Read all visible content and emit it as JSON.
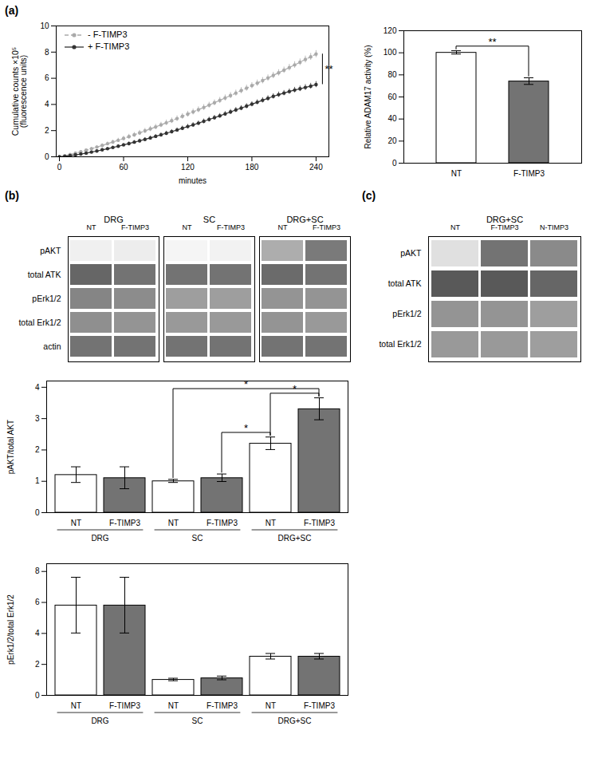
{
  "chart_data": [
    {
      "type": "line",
      "title": "(a)",
      "x_label": "minutes",
      "y_label": "Cumulative counts ×10⁵\n(fluorescence units)",
      "x": [
        0,
        5,
        10,
        15,
        20,
        25,
        30,
        35,
        40,
        45,
        50,
        55,
        60,
        65,
        70,
        75,
        80,
        85,
        90,
        95,
        100,
        105,
        110,
        115,
        120,
        125,
        130,
        135,
        140,
        145,
        150,
        155,
        160,
        165,
        170,
        175,
        180,
        185,
        190,
        195,
        200,
        205,
        210,
        215,
        220,
        225,
        230,
        235,
        240
      ],
      "xlim": [
        -3,
        252
      ],
      "xticks": [
        0,
        60,
        120,
        180,
        240
      ],
      "ylim": [
        0,
        10
      ],
      "yticks": [
        0,
        2,
        4,
        6,
        8,
        10
      ],
      "legend": "upper left",
      "series": [
        {
          "name": "- F-TIMP3",
          "color": "#aaaaaa",
          "line_style": "dashed",
          "marker": "circle",
          "values": [
            0,
            0.08,
            0.17,
            0.27,
            0.38,
            0.5,
            0.62,
            0.74,
            0.87,
            1.0,
            1.13,
            1.26,
            1.4,
            1.54,
            1.68,
            1.83,
            1.98,
            2.13,
            2.28,
            2.44,
            2.6,
            2.76,
            2.92,
            3.09,
            3.26,
            3.43,
            3.6,
            3.77,
            3.95,
            4.13,
            4.31,
            4.5,
            4.68,
            4.87,
            5.06,
            5.25,
            5.44,
            5.63,
            5.82,
            6.02,
            6.22,
            6.42,
            6.62,
            6.82,
            7.02,
            7.23,
            7.44,
            7.64,
            7.85
          ],
          "errors": [
            0.03,
            0.04,
            0.05,
            0.07,
            0.08,
            0.1,
            0.11,
            0.12,
            0.13,
            0.14,
            0.15,
            0.16,
            0.17,
            0.18,
            0.18,
            0.19,
            0.19,
            0.2,
            0.2,
            0.2,
            0.21,
            0.21,
            0.21,
            0.21,
            0.22,
            0.22,
            0.22,
            0.22,
            0.22,
            0.22,
            0.23,
            0.23,
            0.23,
            0.23,
            0.23,
            0.23,
            0.23,
            0.24,
            0.24,
            0.24,
            0.24,
            0.24,
            0.24,
            0.25,
            0.25,
            0.25,
            0.26,
            0.26,
            0.27
          ]
        },
        {
          "name": "+ F-TIMP3",
          "color": "#333333",
          "line_style": "solid",
          "marker": "circle",
          "values": [
            0,
            0.04,
            0.09,
            0.15,
            0.21,
            0.28,
            0.36,
            0.44,
            0.53,
            0.62,
            0.71,
            0.81,
            0.91,
            1.01,
            1.12,
            1.22,
            1.33,
            1.44,
            1.56,
            1.68,
            1.8,
            1.92,
            2.05,
            2.18,
            2.31,
            2.44,
            2.57,
            2.71,
            2.85,
            2.99,
            3.13,
            3.28,
            3.43,
            3.58,
            3.72,
            3.87,
            4.02,
            4.17,
            4.32,
            4.47,
            4.62,
            4.75,
            4.87,
            4.99,
            5.1,
            5.2,
            5.3,
            5.4,
            5.52
          ],
          "errors": [
            0.02,
            0.03,
            0.04,
            0.05,
            0.06,
            0.07,
            0.08,
            0.09,
            0.1,
            0.11,
            0.11,
            0.12,
            0.12,
            0.13,
            0.13,
            0.14,
            0.14,
            0.15,
            0.15,
            0.15,
            0.16,
            0.16,
            0.16,
            0.17,
            0.17,
            0.17,
            0.17,
            0.18,
            0.18,
            0.18,
            0.18,
            0.18,
            0.19,
            0.19,
            0.19,
            0.19,
            0.19,
            0.19,
            0.2,
            0.2,
            0.2,
            0.2,
            0.2,
            0.2,
            0.21,
            0.21,
            0.22,
            0.22,
            0.23
          ]
        }
      ],
      "annotations": [
        {
          "text": "**",
          "from": "- F-TIMP3",
          "to": "+ F-TIMP3"
        }
      ]
    },
    {
      "type": "bar",
      "categories": [
        "NT",
        "F-TIMP3"
      ],
      "values": [
        100,
        74
      ],
      "errors": [
        1.5,
        3.0
      ],
      "colors": [
        "white",
        "#737373"
      ],
      "ylim": [
        0,
        120
      ],
      "yticks": [
        0,
        20,
        40,
        60,
        80,
        100,
        120
      ],
      "y_label": "Relative ADAM17 activity (%)",
      "annotations": [
        {
          "text": "**",
          "from": "NT",
          "to": "F-TIMP3"
        }
      ]
    },
    {
      "type": "heatmap",
      "title": "(b)",
      "groups": [
        "DRG",
        "SC",
        "DRG+SC"
      ],
      "lane_labels": [
        [
          "NT",
          "F-TIMP3"
        ],
        [
          "NT",
          "F-TIMP3"
        ],
        [
          "NT",
          "F-TIMP3"
        ]
      ],
      "row_labels": [
        "pAKT",
        "total ATK",
        "pErk1/2",
        "total Erk1/2",
        "actin"
      ],
      "values": [
        [
          0.06,
          0.07,
          0.04,
          0.05,
          0.32,
          0.52
        ],
        [
          0.6,
          0.55,
          0.55,
          0.55,
          0.58,
          0.55
        ],
        [
          0.48,
          0.45,
          0.38,
          0.38,
          0.42,
          0.42
        ],
        [
          0.44,
          0.42,
          0.4,
          0.4,
          0.42,
          0.4
        ],
        [
          0.55,
          0.55,
          0.55,
          0.55,
          0.55,
          0.55
        ]
      ],
      "zlim": [
        0,
        1
      ]
    },
    {
      "type": "heatmap",
      "title": "(c)",
      "groups": [
        "DRG+SC"
      ],
      "lane_labels": [
        [
          "NT",
          "F-TIMP3",
          "N-TIMP3"
        ]
      ],
      "row_labels": [
        "pAKT",
        "total ATK",
        "pErk1/2",
        "total Erk1/2"
      ],
      "values": [
        [
          0.12,
          0.55,
          0.46
        ],
        [
          0.65,
          0.65,
          0.6
        ],
        [
          0.42,
          0.42,
          0.38
        ],
        [
          0.4,
          0.4,
          0.38
        ]
      ],
      "zlim": [
        0,
        1
      ]
    },
    {
      "type": "bar",
      "categories": [
        "DRG",
        "SC",
        "DRG+SC"
      ],
      "series": [
        {
          "name": "NT",
          "color": "white",
          "values": [
            1.2,
            1.0,
            2.2
          ],
          "errors": [
            0.25,
            0.05,
            0.2
          ]
        },
        {
          "name": "F-TIMP3",
          "color": "#737373",
          "values": [
            1.1,
            1.1,
            3.3
          ],
          "errors": [
            0.35,
            0.12,
            0.35
          ]
        }
      ],
      "ylim": [
        0,
        4.2
      ],
      "yticks": [
        0,
        1,
        2,
        3,
        4
      ],
      "y_label": "pAKT/total AKT",
      "annotations": [
        {
          "text": "*",
          "from": {
            "category": "SC",
            "series": "F-TIMP3"
          },
          "to": {
            "category": "DRG+SC",
            "series": "NT"
          }
        },
        {
          "text": "*",
          "from": {
            "category": "DRG+SC",
            "series": "NT"
          },
          "to": {
            "category": "DRG+SC",
            "series": "F-TIMP3"
          }
        },
        {
          "text": "*",
          "from": {
            "category": "SC",
            "series": "NT"
          },
          "to": {
            "category": "DRG+SC",
            "series": "F-TIMP3"
          }
        }
      ]
    },
    {
      "type": "bar",
      "categories": [
        "DRG",
        "SC",
        "DRG+SC"
      ],
      "series": [
        {
          "name": "NT",
          "color": "white",
          "values": [
            5.8,
            1.0,
            2.5
          ],
          "errors": [
            1.8,
            0.08,
            0.18
          ]
        },
        {
          "name": "F-TIMP3",
          "color": "#737373",
          "values": [
            5.8,
            1.1,
            2.5
          ],
          "errors": [
            1.8,
            0.12,
            0.18
          ]
        }
      ],
      "ylim": [
        0,
        8.5
      ],
      "yticks": [
        0,
        2,
        4,
        6,
        8
      ],
      "y_label": "pErk1/2/total Erk1/2"
    }
  ]
}
